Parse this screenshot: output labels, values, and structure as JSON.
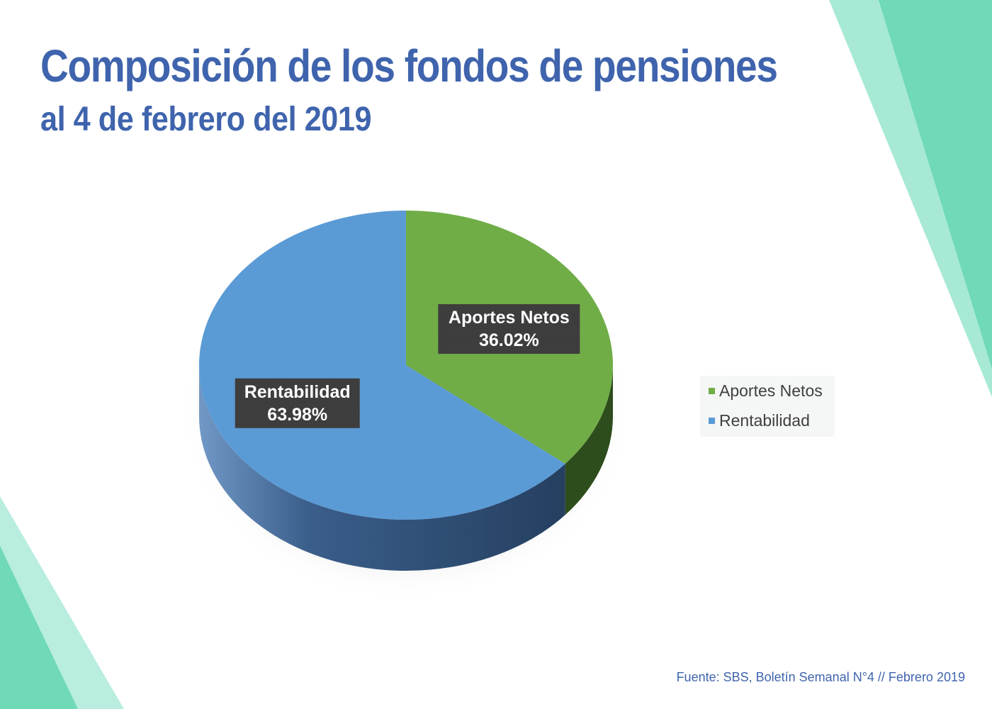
{
  "title": "Composición de los fondos de pensiones",
  "subtitle": "al 4 de febrero del 2019",
  "source": "Fuente: SBS, Boletín Semanal N°4 // Febrero 2019",
  "colors": {
    "heading": "#3f64ad",
    "aportes": "#70ad47",
    "rentabilidad": "#5b9bd5",
    "teal": "#6fd9b8",
    "teal_light": "#b3ebda"
  },
  "chart_data": {
    "type": "pie",
    "style": "3d",
    "categories": [
      "Aportes Netos",
      "Rentabilidad"
    ],
    "values": [
      36.02,
      63.98
    ],
    "data_labels": [
      {
        "name": "Aportes Netos",
        "value": "36.02%"
      },
      {
        "name": "Rentabilidad",
        "value": "63.98%"
      }
    ],
    "legend": [
      "Aportes Netos",
      "Rentabilidad"
    ],
    "legend_position": "right"
  }
}
